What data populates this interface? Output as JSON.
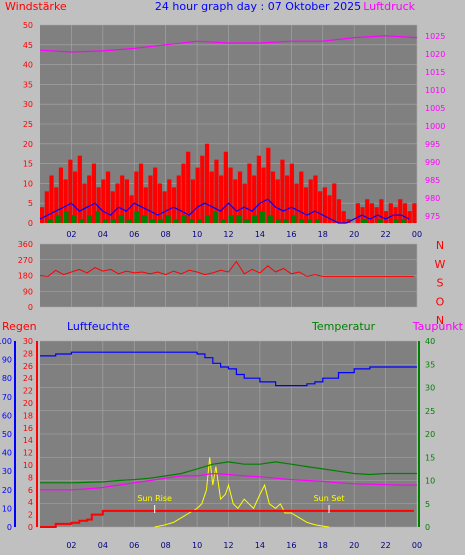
{
  "title": "24 hour graph day : 07 Oktober 2025",
  "colors": {
    "background": "#c0c0c0",
    "plot": "#808080",
    "grid": "#a8a8a8",
    "wind": "#ff0000",
    "gust_line": "#0000ff",
    "avg": "#008000",
    "pressure": "#ff00ff",
    "direction": "#ff0000",
    "rain": "#ff0000",
    "humidity": "#0000ff",
    "temperature": "#008000",
    "dewpoint": "#ff00ff",
    "solar": "#ffff00",
    "sun_marker": "#ffffff",
    "title": "#0000ff"
  },
  "chart_data": [
    {
      "type": "bar",
      "title": "24 hour graph day : 07 Oktober 2025",
      "left_label": "Windstärke",
      "right_label": "Luftdruck",
      "x_ticks": [
        "02",
        "04",
        "06",
        "08",
        "10",
        "12",
        "14",
        "16",
        "18",
        "20",
        "22",
        "00"
      ],
      "x_range": [
        0,
        24
      ],
      "ylim_left": [
        0,
        50
      ],
      "yticks_left": [
        "0",
        "5",
        "10",
        "15",
        "20",
        "25",
        "30",
        "35",
        "40",
        "45",
        "50"
      ],
      "ylim_right": [
        973,
        1028
      ],
      "yticks_right": [
        "975",
        "980",
        "985",
        "990",
        "995",
        "1000",
        "1005",
        "1010",
        "1015",
        "1020",
        "1025"
      ],
      "series": [
        {
          "name": "wind_gust",
          "x": [
            0.0,
            0.3,
            0.6,
            0.9,
            1.2,
            1.5,
            1.8,
            2.1,
            2.4,
            2.7,
            3.0,
            3.3,
            3.6,
            3.9,
            4.2,
            4.5,
            4.8,
            5.1,
            5.4,
            5.7,
            6.0,
            6.3,
            6.6,
            6.9,
            7.2,
            7.5,
            7.8,
            8.1,
            8.4,
            8.7,
            9.0,
            9.3,
            9.6,
            9.9,
            10.2,
            10.5,
            10.8,
            11.1,
            11.4,
            11.7,
            12.0,
            12.3,
            12.6,
            12.9,
            13.2,
            13.5,
            13.8,
            14.1,
            14.4,
            14.7,
            15.0,
            15.3,
            15.6,
            15.9,
            16.2,
            16.5,
            16.8,
            17.1,
            17.4,
            17.7,
            18.0,
            18.3,
            18.6,
            18.9,
            19.2,
            19.5,
            19.8,
            20.1,
            20.4,
            20.7,
            21.0,
            21.3,
            21.6,
            21.9,
            22.2,
            22.5,
            22.8,
            23.1,
            23.4,
            23.7
          ],
          "values": [
            4,
            8,
            12,
            9,
            14,
            11,
            16,
            13,
            17,
            10,
            12,
            15,
            9,
            11,
            13,
            8,
            10,
            12,
            11,
            7,
            13,
            15,
            9,
            12,
            14,
            10,
            8,
            11,
            9,
            12,
            15,
            18,
            11,
            14,
            17,
            20,
            13,
            16,
            12,
            18,
            14,
            11,
            13,
            10,
            15,
            12,
            17,
            14,
            19,
            13,
            11,
            16,
            12,
            15,
            10,
            13,
            9,
            11,
            12,
            8,
            9,
            7,
            10,
            6,
            3,
            1,
            0,
            5,
            4,
            6,
            5,
            4,
            6,
            3,
            5,
            4,
            6,
            5,
            3,
            5
          ]
        },
        {
          "name": "wind_avg_line",
          "x": [
            0.0,
            0.5,
            1.0,
            1.5,
            2.0,
            2.5,
            3.0,
            3.5,
            4.0,
            4.5,
            5.0,
            5.5,
            6.0,
            6.5,
            7.0,
            7.5,
            8.0,
            8.5,
            9.0,
            9.5,
            10.0,
            10.5,
            11.0,
            11.5,
            12.0,
            12.5,
            13.0,
            13.5,
            14.0,
            14.5,
            15.0,
            15.5,
            16.0,
            16.5,
            17.0,
            17.5,
            18.0,
            18.5,
            19.0,
            19.5,
            20.0,
            20.5,
            21.0,
            21.5,
            22.0,
            22.5,
            23.0,
            23.5
          ],
          "values": [
            1,
            2,
            3,
            4,
            5,
            3,
            4,
            5,
            3,
            2,
            4,
            3,
            5,
            4,
            3,
            2,
            3,
            4,
            3,
            2,
            4,
            5,
            4,
            3,
            5,
            3,
            4,
            3,
            5,
            6,
            4,
            3,
            4,
            3,
            2,
            3,
            2,
            1,
            0,
            0,
            1,
            2,
            1,
            2,
            1,
            2,
            2,
            1
          ]
        },
        {
          "name": "wind_avg",
          "x": [
            0.0,
            0.5,
            1.0,
            1.5,
            2.0,
            2.5,
            3.0,
            3.5,
            4.0,
            4.5,
            5.0,
            5.5,
            6.0,
            6.5,
            7.0,
            7.5,
            8.0,
            8.5,
            9.0,
            9.5,
            10.0,
            10.5,
            11.0,
            11.5,
            12.0,
            12.5,
            13.0,
            13.5,
            14.0,
            14.5,
            15.0,
            15.5,
            16.0,
            16.5,
            17.0,
            17.5,
            18.0,
            18.5,
            19.0,
            19.5,
            20.0,
            20.5,
            21.0,
            21.5,
            22.0,
            22.5,
            23.0,
            23.5
          ],
          "values": [
            0,
            1,
            2,
            3,
            2,
            1,
            2,
            3,
            1,
            1,
            2,
            1,
            3,
            2,
            1,
            1,
            2,
            1,
            2,
            1,
            1,
            2,
            3,
            1,
            2,
            2,
            1,
            2,
            3,
            2,
            1,
            1,
            2,
            1,
            1,
            1,
            0,
            0,
            0,
            0,
            0,
            1,
            0,
            1,
            0,
            1,
            1,
            0
          ]
        },
        {
          "name": "pressure",
          "x": [
            0,
            2,
            4,
            6,
            8,
            10,
            12,
            14,
            16,
            18,
            20,
            22,
            24
          ],
          "values": [
            1021,
            1020.5,
            1020.8,
            1021.5,
            1022.5,
            1023.5,
            1023,
            1023,
            1023.5,
            1023.5,
            1024.5,
            1025,
            1024.5
          ]
        }
      ]
    },
    {
      "type": "line",
      "left_label_ticks": [
        "0",
        "90",
        "180",
        "270",
        "360"
      ],
      "ylim": [
        0,
        360
      ],
      "right_labels": [
        "N",
        "W",
        "S",
        "O",
        "N"
      ],
      "x_range": [
        0,
        24
      ],
      "series": [
        {
          "name": "wind_direction",
          "x": [
            0,
            0.5,
            1,
            1.5,
            2,
            2.5,
            3,
            3.5,
            4,
            4.5,
            5,
            5.5,
            6,
            6.5,
            7,
            7.5,
            8,
            8.5,
            9,
            9.5,
            10,
            10.5,
            11,
            11.5,
            12,
            12.5,
            13,
            13.5,
            14,
            14.5,
            15,
            15.5,
            16,
            16.5,
            17,
            17.5,
            18,
            19,
            20,
            21,
            22,
            23,
            23.8
          ],
          "values": [
            180,
            175,
            210,
            185,
            200,
            215,
            195,
            225,
            205,
            215,
            190,
            205,
            195,
            200,
            190,
            200,
            185,
            205,
            190,
            210,
            200,
            185,
            195,
            210,
            200,
            260,
            190,
            215,
            195,
            235,
            200,
            220,
            190,
            200,
            175,
            185,
            175,
            175,
            175,
            175,
            175,
            175,
            175
          ]
        }
      ]
    },
    {
      "type": "line",
      "left_label": "Regen",
      "humidity_label": "Luftfeuchte",
      "temperature_label": "Temperatur",
      "dewpoint_label": "Taupunkt",
      "x_ticks": [
        "02",
        "04",
        "06",
        "08",
        "10",
        "12",
        "14",
        "16",
        "18",
        "20",
        "22",
        "00"
      ],
      "x_range": [
        0,
        24
      ],
      "humidity_ticks": [
        "0",
        "10",
        "20",
        "30",
        "40",
        "50",
        "60",
        "70",
        "80",
        "90",
        "100"
      ],
      "ylim_humidity": [
        0,
        100
      ],
      "rain_ticks": [
        "0",
        "2",
        "4",
        "6",
        "8",
        "10",
        "12",
        "14",
        "16",
        "18",
        "20",
        "22",
        "24",
        "26",
        "28",
        "30"
      ],
      "ylim_rain": [
        0,
        30
      ],
      "temp_ticks": [
        "0",
        "5",
        "10",
        "15",
        "20",
        "25",
        "30",
        "35",
        "40"
      ],
      "ylim_temp": [
        0,
        40
      ],
      "sunrise_label": "Sun Rise",
      "sunset_label": "Sun Set",
      "sunrise_x": 7.3,
      "sunset_x": 18.4,
      "series": [
        {
          "name": "humidity",
          "x": [
            0,
            1,
            2,
            3,
            4,
            5,
            6,
            7,
            8,
            9,
            10,
            10.5,
            11,
            11.5,
            12,
            12.5,
            13,
            14,
            15,
            16,
            17,
            17.5,
            18,
            19,
            20,
            21,
            22,
            23,
            24
          ],
          "values": [
            92,
            93,
            94,
            94,
            94,
            94,
            94,
            94,
            94,
            94,
            93,
            91,
            88,
            86,
            85,
            82,
            80,
            78,
            76,
            76,
            77,
            78,
            80,
            83,
            85,
            86,
            86,
            86,
            86
          ]
        },
        {
          "name": "temperature",
          "x": [
            0,
            1,
            2,
            3,
            4,
            5,
            6,
            7,
            8,
            9,
            10,
            11,
            12,
            13,
            14,
            15,
            16,
            17,
            18,
            19,
            20,
            21,
            22,
            23,
            24
          ],
          "values": [
            9.5,
            9.5,
            9.5,
            9.6,
            9.7,
            10,
            10.2,
            10.5,
            11,
            11.5,
            12.5,
            13.5,
            14,
            13.5,
            13.5,
            14,
            13.5,
            13,
            12.5,
            12,
            11.5,
            11.3,
            11.5,
            11.5,
            11.5
          ]
        },
        {
          "name": "dewpoint",
          "x": [
            0,
            1,
            2,
            3,
            4,
            5,
            6,
            7,
            8,
            9,
            10,
            11,
            12,
            13,
            14,
            15,
            16,
            17,
            18,
            19,
            20,
            21,
            22,
            23,
            24
          ],
          "values": [
            8,
            8,
            8,
            8.2,
            8.5,
            9,
            9.5,
            10,
            10.5,
            11,
            11,
            11.5,
            11.3,
            11,
            10.8,
            10.5,
            10.2,
            10,
            9.8,
            9.5,
            9.3,
            9.2,
            9.1,
            9,
            9
          ]
        },
        {
          "name": "solar",
          "x": [
            7.3,
            8,
            8.5,
            9,
            9.5,
            10,
            10.3,
            10.6,
            10.8,
            11,
            11.2,
            11.5,
            11.8,
            12,
            12.3,
            12.6,
            13,
            13.3,
            13.6,
            14,
            14.3,
            14.6,
            15,
            15.3,
            15.6,
            16,
            16.5,
            17,
            17.5,
            18,
            18.4
          ],
          "values": [
            0,
            0.5,
            1,
            2,
            3,
            4,
            5,
            8,
            15,
            9,
            13,
            6,
            7,
            9,
            5,
            4,
            6,
            5,
            4,
            7,
            9,
            5,
            4,
            5,
            3,
            3,
            2,
            1,
            0.5,
            0.2,
            0
          ]
        },
        {
          "name": "rain",
          "x": [
            0,
            1,
            2,
            2.5,
            3,
            3.3,
            4,
            5,
            6,
            7,
            8,
            9,
            10,
            11,
            12,
            13,
            14,
            15,
            16,
            17,
            18,
            19,
            20,
            21,
            22,
            23,
            23.8
          ],
          "values": [
            0,
            0.5,
            0.7,
            1,
            1.2,
            2,
            2.6,
            2.6,
            2.6,
            2.6,
            2.6,
            2.6,
            2.6,
            2.6,
            2.6,
            2.6,
            2.6,
            2.6,
            2.6,
            2.6,
            2.6,
            2.6,
            2.6,
            2.6,
            2.6,
            2.6,
            2.6
          ]
        }
      ]
    }
  ]
}
